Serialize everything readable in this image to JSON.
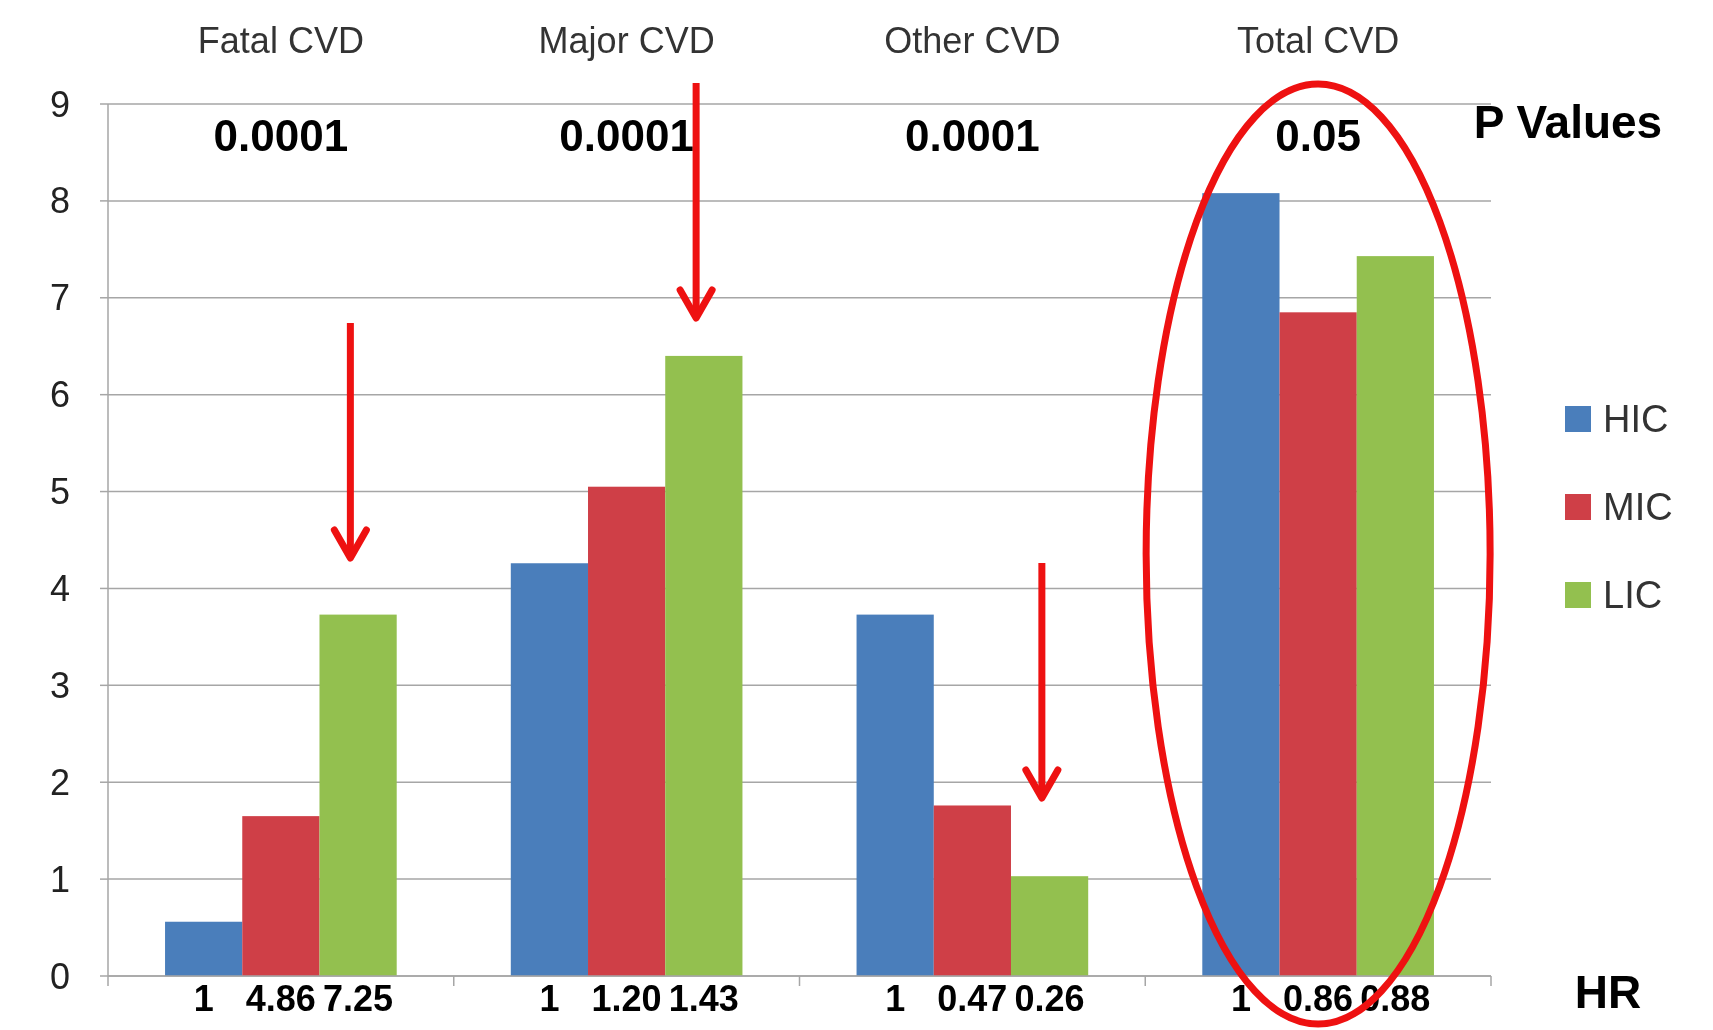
{
  "chart_data": {
    "type": "bar",
    "categories": [
      "Fatal CVD",
      "Major CVD",
      "Other CVD",
      "Total CVD"
    ],
    "series": [
      {
        "name": "HIC",
        "color": "#4a7ebb",
        "values": [
          0.56,
          4.26,
          3.73,
          8.08
        ]
      },
      {
        "name": "MIC",
        "color": "#cf3f47",
        "values": [
          1.65,
          5.05,
          1.76,
          6.85
        ]
      },
      {
        "name": "LIC",
        "color": "#93c04f",
        "values": [
          3.73,
          6.4,
          1.03,
          7.43
        ]
      }
    ],
    "ylim": [
      0,
      9
    ],
    "yticks": [
      0,
      1,
      2,
      3,
      4,
      5,
      6,
      7,
      8,
      9
    ],
    "grid": "y",
    "legend": "right",
    "annotations": [
      "P Values",
      "HR",
      "0.0001",
      "0.0001",
      "0.0001",
      "0.05",
      "1",
      "4.86",
      "7.25",
      "1",
      "1.20",
      "1.43",
      "1",
      "0.47",
      "0.26",
      "1",
      "0.86",
      "0.88"
    ]
  }
}
